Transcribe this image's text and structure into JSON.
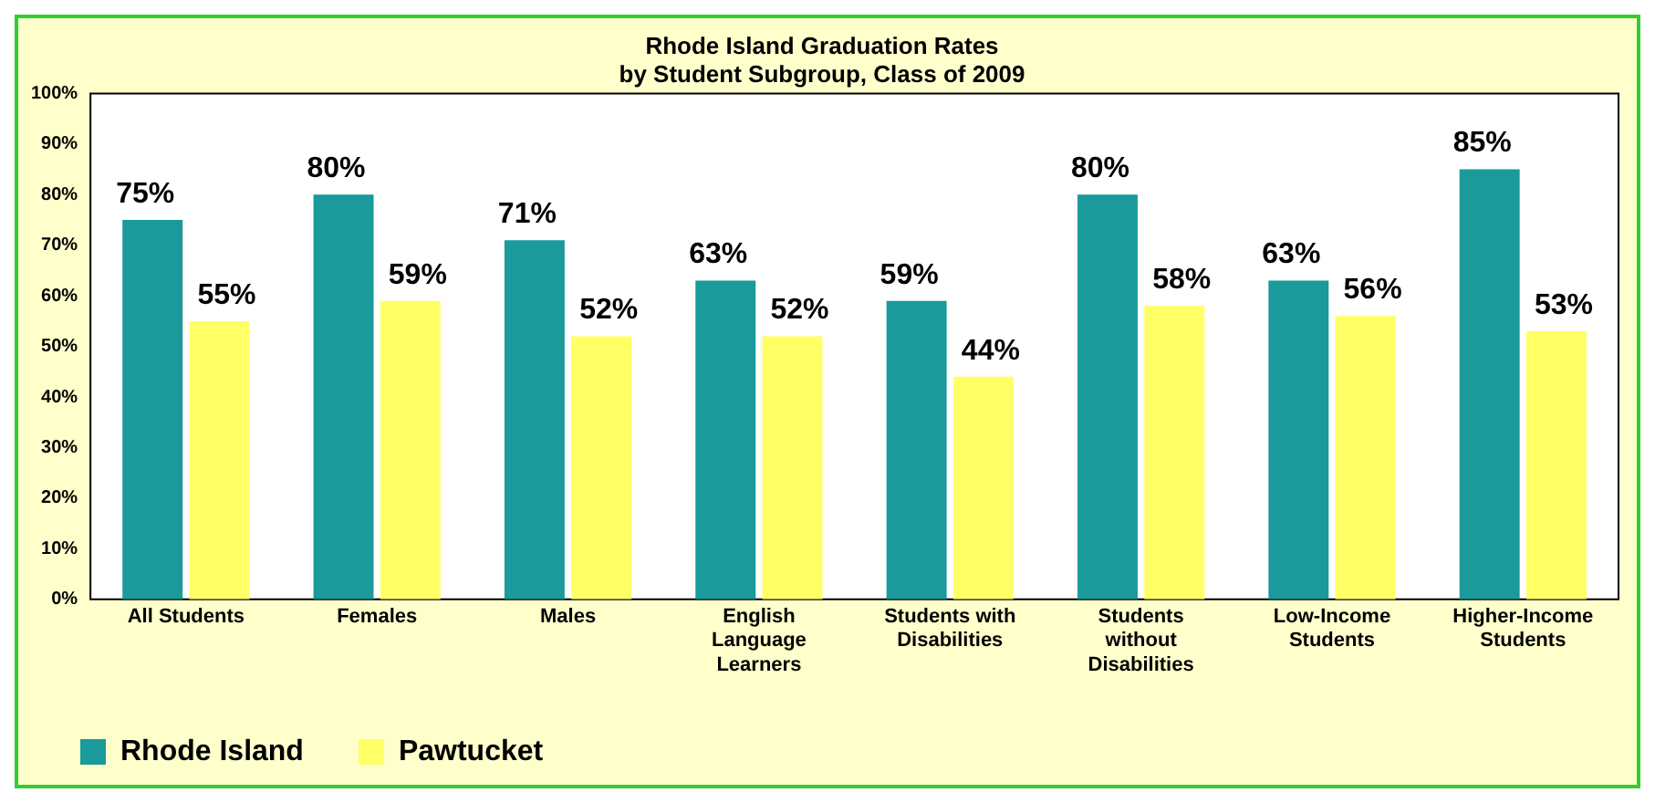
{
  "chart_data": {
    "type": "bar",
    "title": "Rhode Island Graduation Rates\nby Student Subgroup, Class of 2009",
    "categories": [
      "All Students",
      "Females",
      "Males",
      "English Language Learners",
      "Students with Disabilities",
      "Students without Disabilities",
      "Low-Income Students",
      "Higher-Income Students"
    ],
    "series": [
      {
        "name": "Rhode Island",
        "color": "#1a9a9a",
        "values": [
          75,
          80,
          71,
          63,
          59,
          80,
          63,
          85
        ],
        "value_labels": [
          "75%",
          "80%",
          "71%",
          "63%",
          "59%",
          "80%",
          "63%",
          "85%"
        ]
      },
      {
        "name": "Pawtucket",
        "color": "#ffff66",
        "values": [
          55,
          59,
          52,
          52,
          44,
          58,
          56,
          53
        ],
        "value_labels": [
          "55%",
          "59%",
          "52%",
          "52%",
          "44%",
          "58%",
          "56%",
          "53%"
        ]
      }
    ],
    "ylim": [
      0,
      100
    ],
    "yticks": [
      {
        "value": 0,
        "label": "0%"
      },
      {
        "value": 10,
        "label": "10%"
      },
      {
        "value": 20,
        "label": "20%"
      },
      {
        "value": 30,
        "label": "30%"
      },
      {
        "value": 40,
        "label": "40%"
      },
      {
        "value": 50,
        "label": "50%"
      },
      {
        "value": 60,
        "label": "60%"
      },
      {
        "value": 70,
        "label": "70%"
      },
      {
        "value": 80,
        "label": "80%"
      },
      {
        "value": 90,
        "label": "90%"
      },
      {
        "value": 100,
        "label": "100%"
      }
    ],
    "grid": false,
    "legend": "bottom left"
  }
}
